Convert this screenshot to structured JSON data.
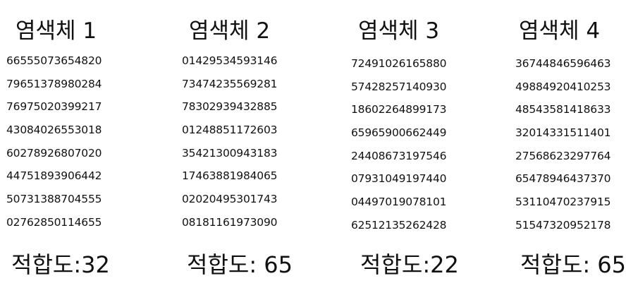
{
  "chromosomes": [
    {
      "title": "염색체 1",
      "genes": [
        "66555073654820",
        "79651378980284",
        "76975020399217",
        "43084026553018",
        "60278926807020",
        "44751893906442",
        "50731388704555",
        "02762850114655"
      ],
      "fitness": "적합도:32"
    },
    {
      "title": "염색체 2",
      "genes": [
        "01429534593146",
        "73474235569281",
        "78302939432885",
        "01248851172603",
        "35421300943183",
        "17463881984065",
        "02020495301743",
        "08181161973090"
      ],
      "fitness": "적합도: 65"
    },
    {
      "title": "염색체 3",
      "genes": [
        "72491026165880",
        "57428257140930",
        "18602264899173",
        "65965900662449",
        "24408673197546",
        "07931049197440",
        "04497019078101",
        "62512135262428"
      ],
      "fitness": "적합도:22"
    },
    {
      "title": "염색체 4",
      "genes": [
        "36744846596463",
        "49884920410253",
        "48543581418633",
        "32014331511401",
        "27568623297764",
        "65478946437370",
        "53110470237915",
        "51547320952178"
      ],
      "fitness": "적합도: 65"
    }
  ]
}
